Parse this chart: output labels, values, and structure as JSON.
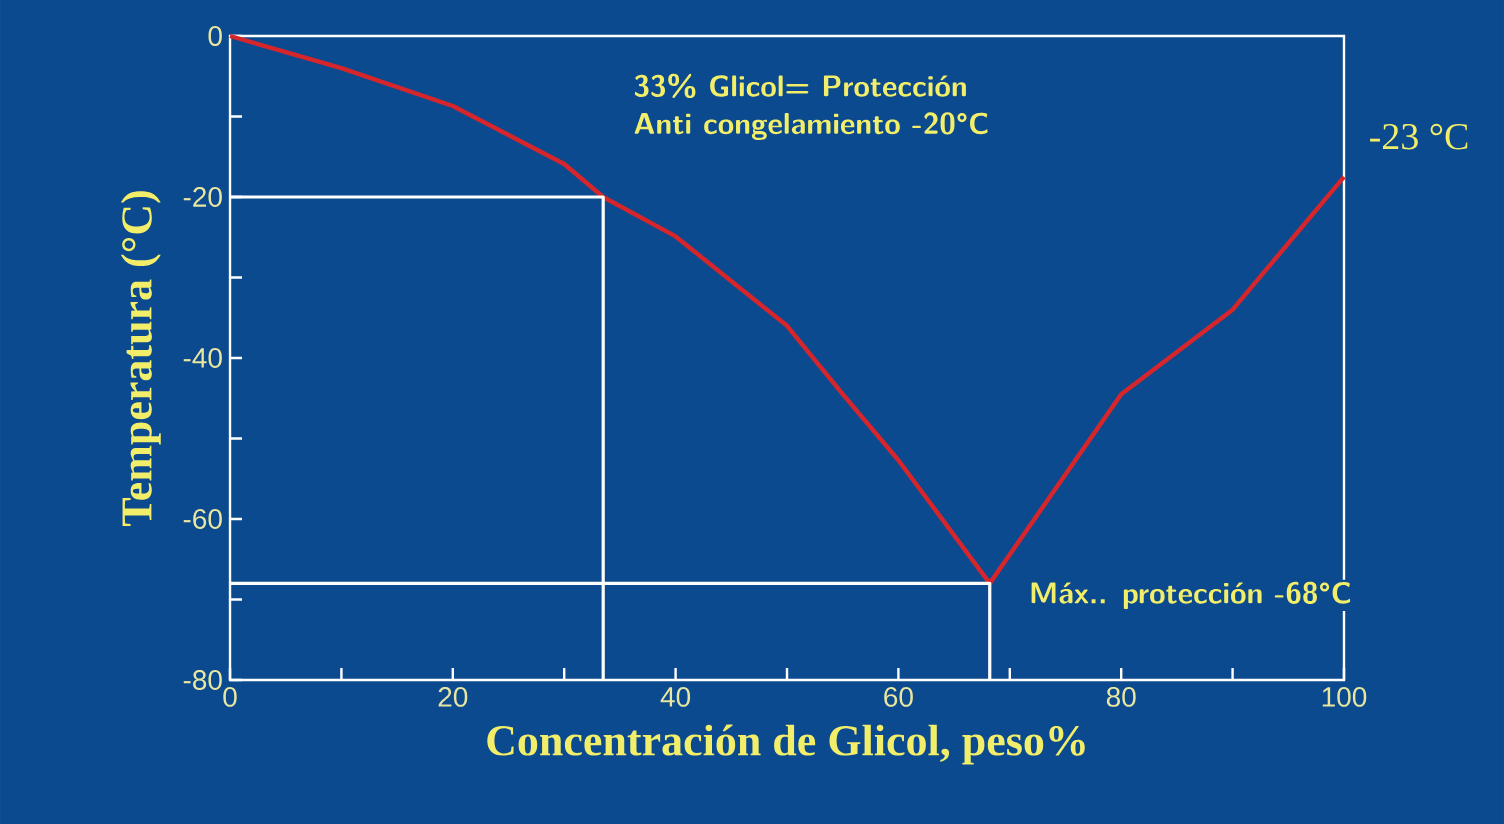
{
  "chart_data": {
    "type": "line",
    "xlabel": "Concentración de Glicol, peso%",
    "ylabel": "Temperatura (°C)",
    "xlim": [
      0,
      100
    ],
    "ylim": [
      -80,
      0
    ],
    "xticks": [
      0,
      {
        "value": 10,
        "label": null
      },
      20,
      {
        "value": 30,
        "label": null
      },
      40,
      {
        "value": 50,
        "label": null
      },
      60,
      {
        "value": 70,
        "label": null
      },
      80,
      {
        "value": 90,
        "label": null
      },
      100
    ],
    "yticks": [
      -80,
      {
        "value": -70,
        "label": null
      },
      -60,
      {
        "value": -50,
        "label": null
      },
      -40,
      {
        "value": -30,
        "label": null
      },
      -20,
      {
        "value": -10,
        "label": null
      },
      0
    ],
    "marker": "none",
    "line_style": "solid",
    "grid": false,
    "series": [
      {
        "color": "#d7262b",
        "x": [
          0,
          10,
          20,
          30,
          33.5,
          40,
          50,
          55,
          60,
          68.2,
          80,
          90,
          100
        ],
        "values": [
          0,
          -4,
          -8.7,
          -15.9,
          -20,
          -24.9,
          -36,
          -44.5,
          -52.7,
          -68,
          -44.5,
          -34,
          -17.5
        ]
      },
      {
        "color": "#ffffff",
        "x": [
          0,
          33.5,
          33.5
        ],
        "values": [
          -20,
          -20,
          -80
        ]
      },
      {
        "color": "#ffffff",
        "x": [
          0,
          68.2,
          68.2
        ],
        "values": [
          -68,
          -68,
          -80
        ]
      }
    ],
    "annotations": [
      "33% Glicol= Protección",
      "Anti congelamiento -20°C",
      "-23 °C",
      "Máx.. protección -68°C"
    ]
  }
}
